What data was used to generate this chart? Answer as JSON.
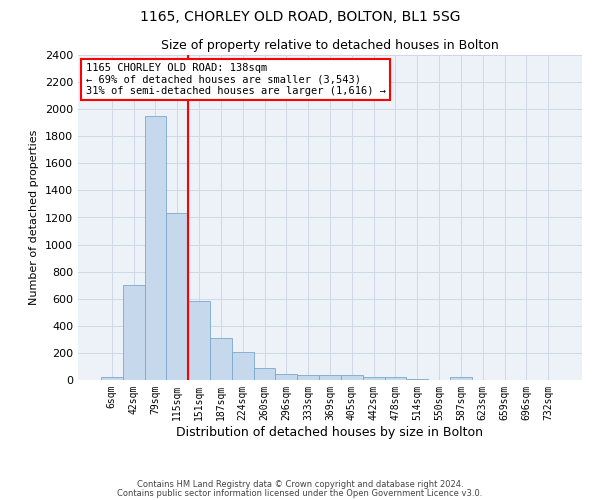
{
  "title1": "1165, CHORLEY OLD ROAD, BOLTON, BL1 5SG",
  "title2": "Size of property relative to detached houses in Bolton",
  "xlabel": "Distribution of detached houses by size in Bolton",
  "ylabel": "Number of detached properties",
  "bar_color": "#c5d8ec",
  "bar_edge_color": "#7aa8cc",
  "grid_color": "#d0d8e8",
  "bg_color": "#edf2f9",
  "categories": [
    "6sqm",
    "42sqm",
    "79sqm",
    "115sqm",
    "151sqm",
    "187sqm",
    "224sqm",
    "260sqm",
    "296sqm",
    "333sqm",
    "369sqm",
    "405sqm",
    "442sqm",
    "478sqm",
    "514sqm",
    "550sqm",
    "587sqm",
    "623sqm",
    "659sqm",
    "696sqm",
    "732sqm"
  ],
  "values": [
    20,
    700,
    1950,
    1230,
    580,
    310,
    205,
    85,
    48,
    38,
    38,
    35,
    20,
    22,
    8,
    0,
    20,
    0,
    0,
    0,
    0
  ],
  "red_line_bin_index": 3.5,
  "annotation_lines": [
    "1165 CHORLEY OLD ROAD: 138sqm",
    "← 69% of detached houses are smaller (3,543)",
    "31% of semi-detached houses are larger (1,616) →"
  ],
  "ylim": [
    0,
    2400
  ],
  "yticks": [
    0,
    200,
    400,
    600,
    800,
    1000,
    1200,
    1400,
    1600,
    1800,
    2000,
    2200,
    2400
  ],
  "footer1": "Contains HM Land Registry data © Crown copyright and database right 2024.",
  "footer2": "Contains public sector information licensed under the Open Government Licence v3.0.",
  "title1_fontsize": 10,
  "title2_fontsize": 9,
  "ylabel_fontsize": 8,
  "xlabel_fontsize": 9,
  "ytick_fontsize": 8,
  "xtick_fontsize": 7,
  "ann_fontsize": 7.5,
  "footer_fontsize": 6
}
